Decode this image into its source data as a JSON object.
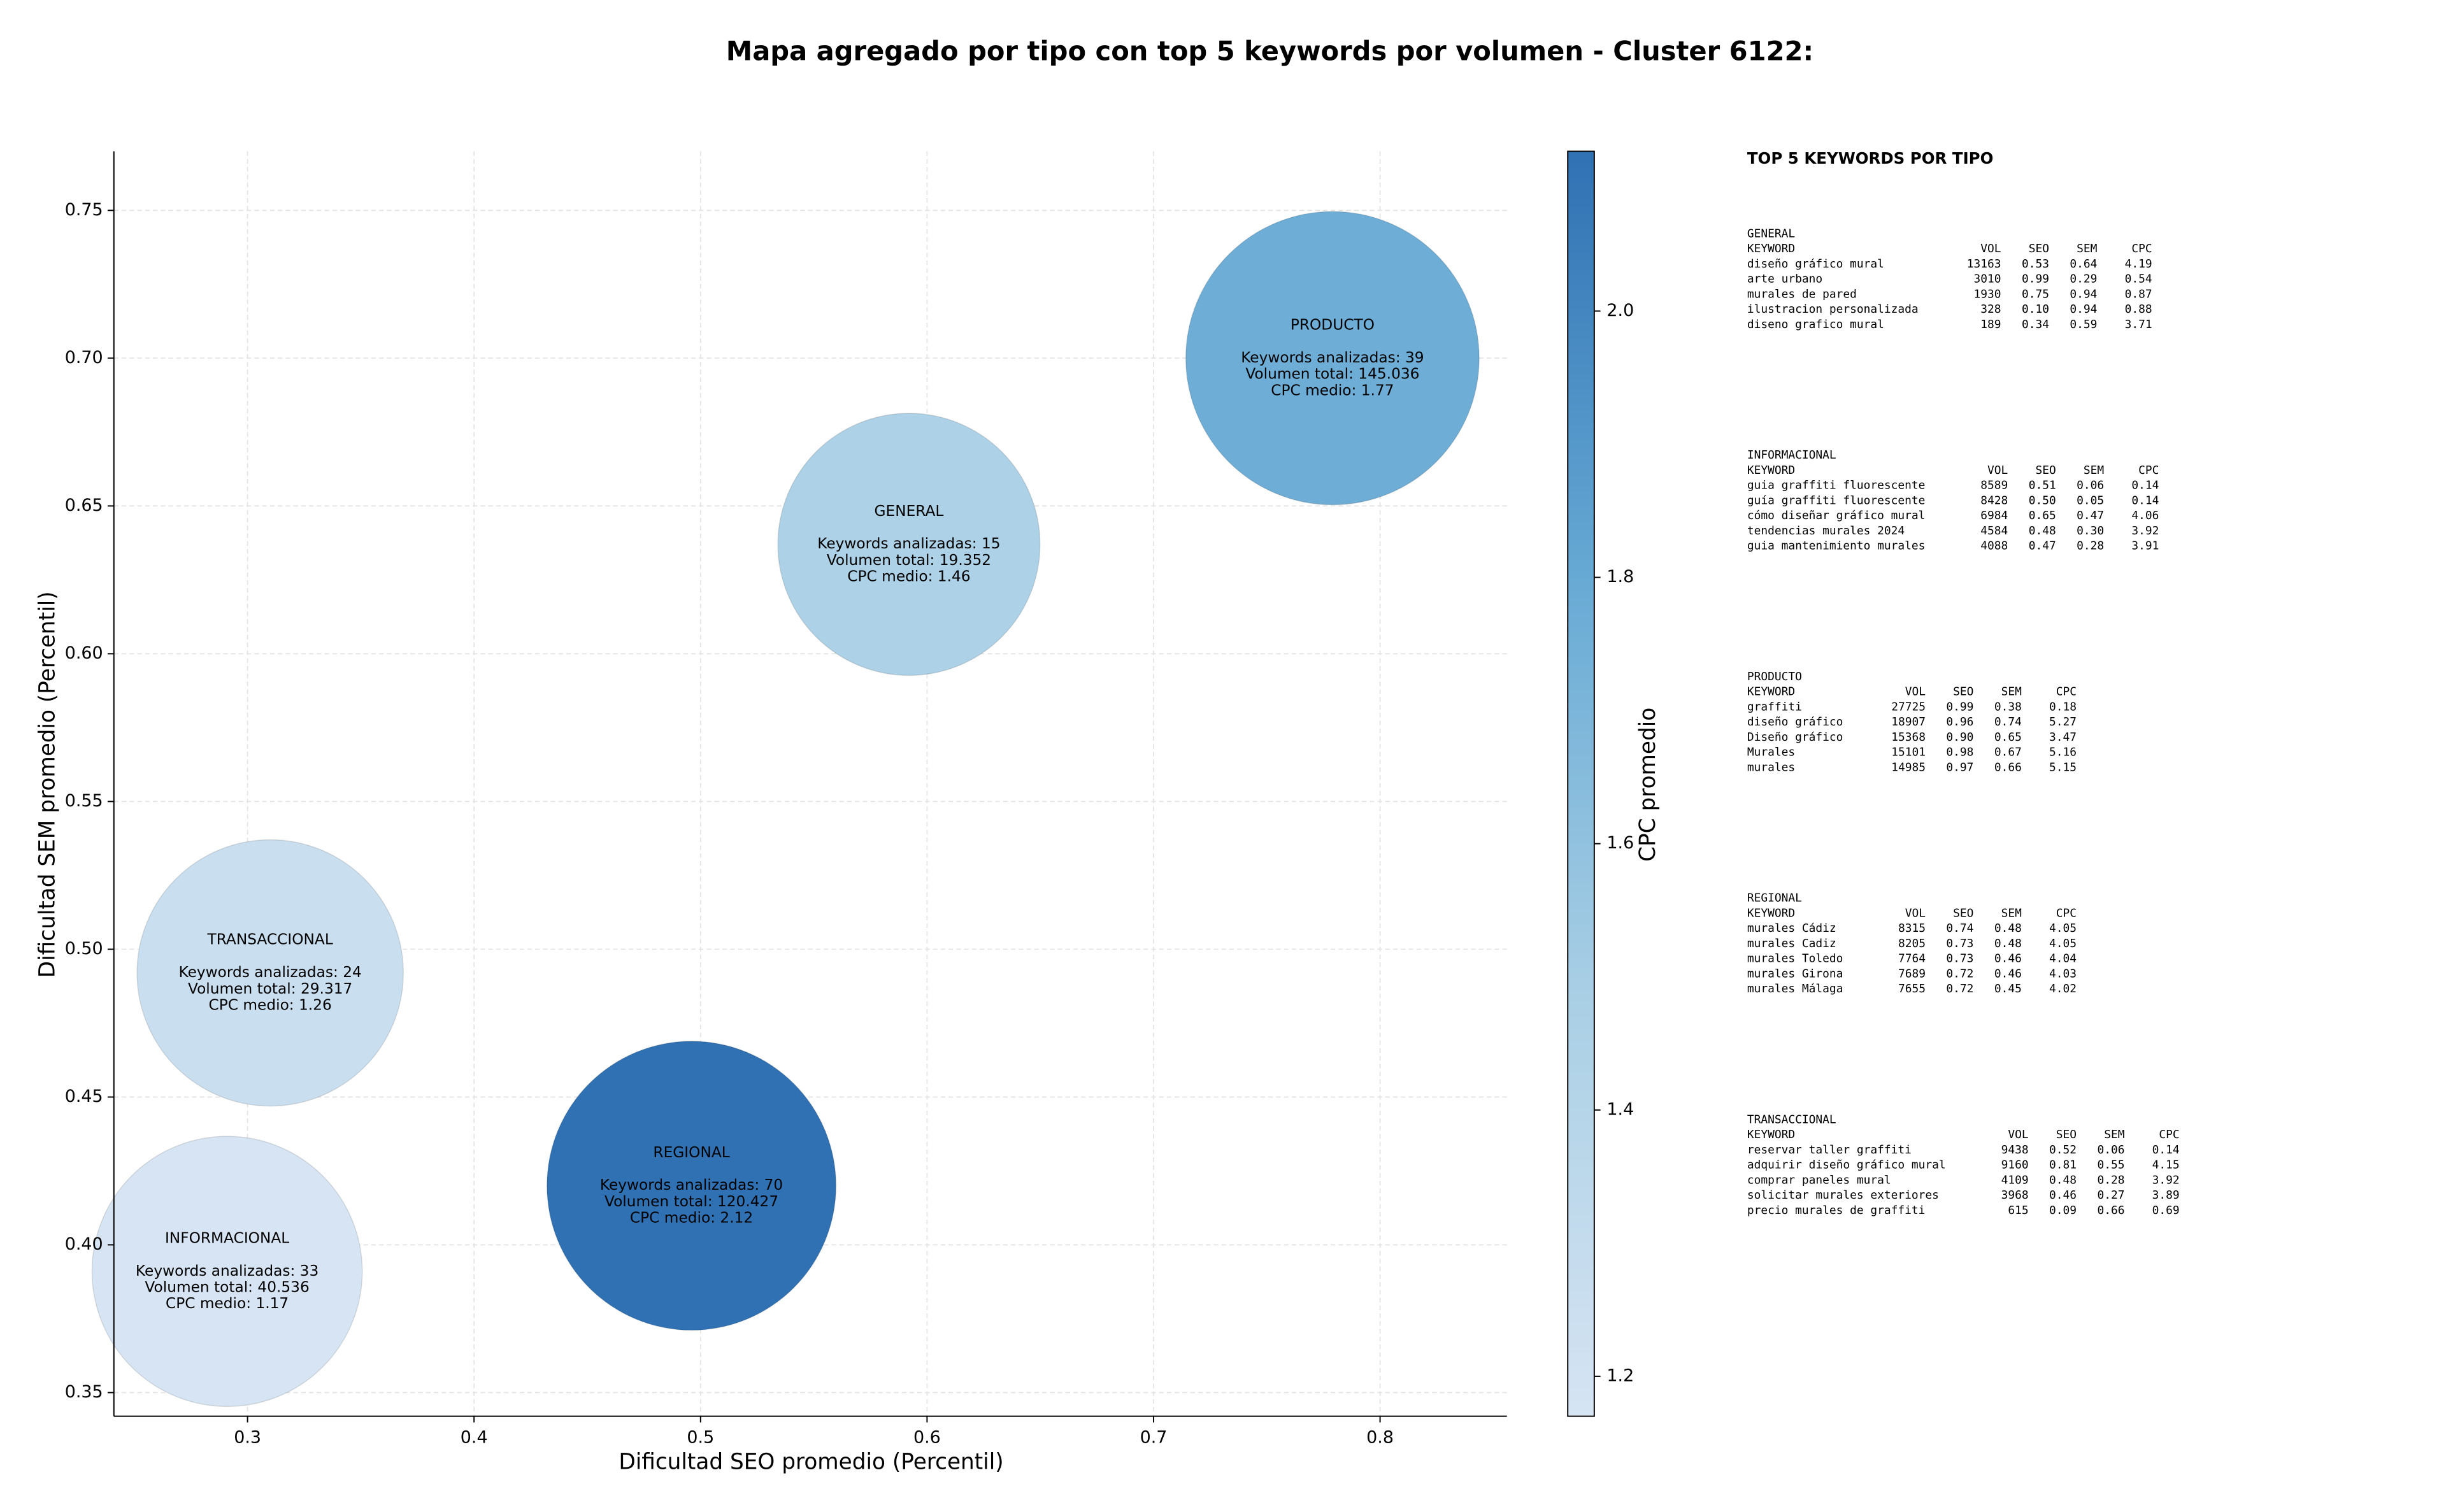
{
  "chart_data": {
    "type": "scatter",
    "title": "Mapa agregado por tipo con top 5 keywords por volumen - Cluster 6122:",
    "x_label": "Dificultad SEO promedio (Percentil)",
    "y_label": "Dificultad SEM promedio (Percentil)",
    "labels": [
      "GENERAL",
      "INFORMACIONAL",
      "PRODUCTO",
      "REGIONAL",
      "TRANSACCIONAL"
    ],
    "x": [
      0.592,
      0.291,
      0.779,
      0.496,
      0.31
    ],
    "values": [
      0.637,
      0.391,
      0.7,
      0.42,
      0.492
    ],
    "sizes": [
      19352,
      40536,
      145036,
      120427,
      29317
    ],
    "color_values": [
      1.46,
      1.17,
      1.77,
      2.12,
      1.26
    ],
    "annotations": [
      [
        "Keywords analizadas: 15",
        "Volumen total: 19.352",
        "CPC medio: 1.46"
      ],
      [
        "Keywords analizadas: 33",
        "Volumen total: 40.536",
        "CPC medio: 1.17"
      ],
      [
        "Keywords analizadas: 39",
        "Volumen total: 145.036",
        "CPC medio: 1.77"
      ],
      [
        "Keywords analizadas: 70",
        "Volumen total: 120.427",
        "CPC medio: 2.12"
      ],
      [
        "Keywords analizadas: 24",
        "Volumen total: 29.317",
        "CPC medio: 1.26"
      ]
    ],
    "xlim": [
      0.241,
      0.856
    ],
    "ylim": [
      0.342,
      0.77
    ],
    "xticks": [
      0.3,
      0.4,
      0.5,
      0.6,
      0.7,
      0.8
    ],
    "yticks": [
      0.35,
      {
        "value": 0.4,
        "label": "0.40"
      },
      0.45,
      {
        "value": 0.5,
        "label": "0.50"
      },
      0.55,
      {
        "value": 0.6,
        "label": "0.60"
      },
      0.65,
      {
        "value": 0.7,
        "label": "0.70"
      },
      0.75
    ],
    "grid": true,
    "colorbar": {
      "label": "CPC promedio",
      "lim": [
        1.17,
        2.12
      ],
      "ticks": [
        1.2,
        1.4,
        1.6,
        1.8,
        {
          "value": 2,
          "label": "2.0"
        }
      ],
      "colors": [
        "#d6e4f3",
        "#a9cfe5",
        "#66a9d4",
        "#2f71b3"
      ]
    }
  },
  "keyword_tables": {
    "title": "TOP 5 KEYWORDS POR TIPO",
    "sections": [
      {
        "name": "GENERAL",
        "columns": [
          "KEYWORD",
          "VOL",
          "SEO",
          "SEM",
          "CPC"
        ],
        "rows": [
          [
            "diseño gráfico mural",
            "13163",
            "0.53",
            "0.64",
            "4.19"
          ],
          [
            "arte urbano",
            "3010",
            "0.99",
            "0.29",
            "0.54"
          ],
          [
            "murales de pared",
            "1930",
            "0.75",
            "0.94",
            "0.87"
          ],
          [
            "ilustracion personalizada",
            "328",
            "0.10",
            "0.94",
            "0.88"
          ],
          [
            "diseno grafico mural",
            "189",
            "0.34",
            "0.59",
            "3.71"
          ]
        ]
      },
      {
        "name": "INFORMACIONAL",
        "columns": [
          "KEYWORD",
          "VOL",
          "SEO",
          "SEM",
          "CPC"
        ],
        "rows": [
          [
            "guia graffiti fluorescente",
            "8589",
            "0.51",
            "0.06",
            "0.14"
          ],
          [
            "guía graffiti fluorescente",
            "8428",
            "0.50",
            "0.05",
            "0.14"
          ],
          [
            "cómo diseñar gráfico mural",
            "6984",
            "0.65",
            "0.47",
            "4.06"
          ],
          [
            "tendencias murales 2024",
            "4584",
            "0.48",
            "0.30",
            "3.92"
          ],
          [
            "guia mantenimiento murales",
            "4088",
            "0.47",
            "0.28",
            "3.91"
          ]
        ]
      },
      {
        "name": "PRODUCTO",
        "columns": [
          "KEYWORD",
          "VOL",
          "SEO",
          "SEM",
          "CPC"
        ],
        "rows": [
          [
            "graffiti",
            "27725",
            "0.99",
            "0.38",
            "0.18"
          ],
          [
            "diseño gráfico",
            "18907",
            "0.96",
            "0.74",
            "5.27"
          ],
          [
            "Diseño gráfico",
            "15368",
            "0.90",
            "0.65",
            "3.47"
          ],
          [
            "Murales",
            "15101",
            "0.98",
            "0.67",
            "5.16"
          ],
          [
            "murales",
            "14985",
            "0.97",
            "0.66",
            "5.15"
          ]
        ]
      },
      {
        "name": "REGIONAL",
        "columns": [
          "KEYWORD",
          "VOL",
          "SEO",
          "SEM",
          "CPC"
        ],
        "rows": [
          [
            "murales Cádiz",
            "8315",
            "0.74",
            "0.48",
            "4.05"
          ],
          [
            "murales Cadiz",
            "8205",
            "0.73",
            "0.48",
            "4.05"
          ],
          [
            "murales Toledo",
            "7764",
            "0.73",
            "0.46",
            "4.04"
          ],
          [
            "murales Girona",
            "7689",
            "0.72",
            "0.46",
            "4.03"
          ],
          [
            "murales Málaga",
            "7655",
            "0.72",
            "0.45",
            "4.02"
          ]
        ]
      },
      {
        "name": "TRANSACCIONAL",
        "columns": [
          "KEYWORD",
          "VOL",
          "SEO",
          "SEM",
          "CPC"
        ],
        "rows": [
          [
            "reservar taller graffiti",
            "9438",
            "0.52",
            "0.06",
            "0.14"
          ],
          [
            "adquirir diseño gráfico mural",
            "9160",
            "0.81",
            "0.55",
            "4.15"
          ],
          [
            "comprar paneles mural",
            "4109",
            "0.48",
            "0.28",
            "3.92"
          ],
          [
            "solicitar murales exteriores",
            "3968",
            "0.46",
            "0.27",
            "3.89"
          ],
          [
            "precio murales de graffiti",
            "615",
            "0.09",
            "0.66",
            "0.69"
          ]
        ]
      }
    ]
  }
}
